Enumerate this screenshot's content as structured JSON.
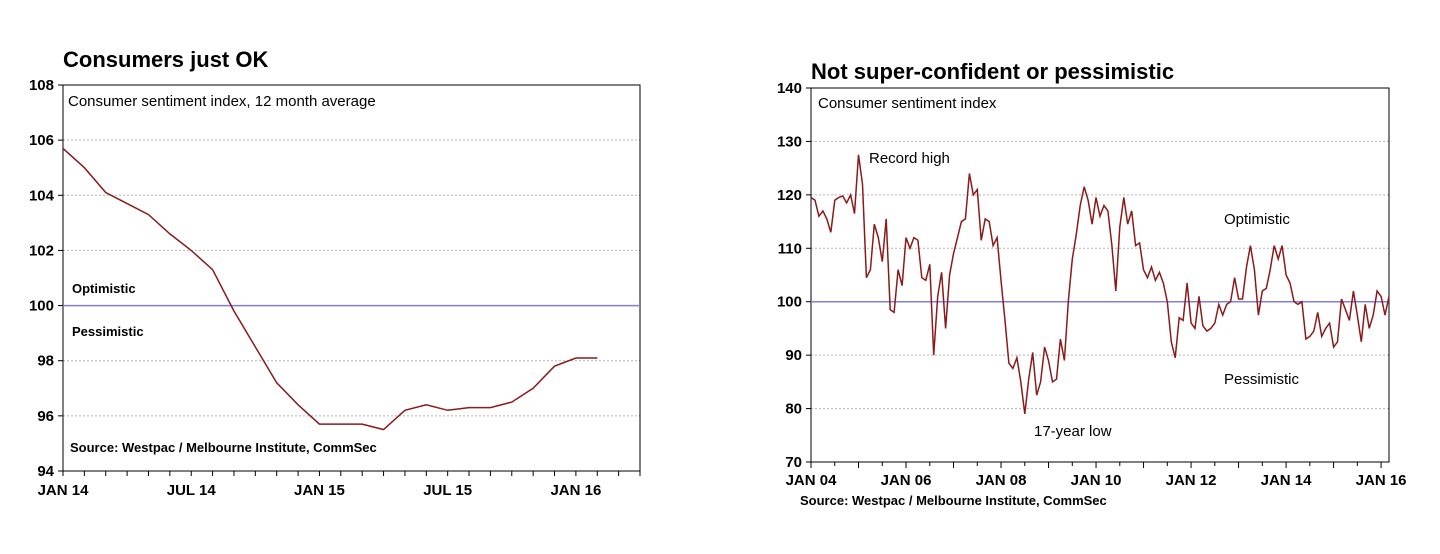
{
  "colors": {
    "series": "#8b1a1a",
    "threshold": "#7f7fe0",
    "grid": "#b4b4b4"
  },
  "chart_data": [
    {
      "type": "line",
      "title": "Consumers just OK",
      "subtitle": "Consumer sentiment index, 12 month average",
      "source": "Source: Westpac / Melbourne Institute, CommSec",
      "threshold": {
        "value": 100,
        "above_label": "Optimistic",
        "below_label": "Pessimistic"
      },
      "ylim": [
        94,
        108
      ],
      "yticks": [
        94,
        96,
        98,
        100,
        102,
        104,
        106,
        108
      ],
      "xlim": [
        0,
        27
      ],
      "xticks": [
        {
          "x": 0,
          "label": "JAN 14"
        },
        {
          "x": 6,
          "label": "JUL 14"
        },
        {
          "x": 12,
          "label": "JAN 15"
        },
        {
          "x": 18,
          "label": "JUL 15"
        },
        {
          "x": 24,
          "label": "JAN 16"
        }
      ],
      "x": [
        "Jan 14",
        "Feb 14",
        "Mar 14",
        "Apr 14",
        "May 14",
        "Jun 14",
        "Jul 14",
        "Aug 14",
        "Sep 14",
        "Oct 14",
        "Nov 14",
        "Dec 14",
        "Jan 15",
        "Feb 15",
        "Mar 15",
        "Apr 15",
        "May 15",
        "Jun 15",
        "Jul 15",
        "Aug 15",
        "Sep 15",
        "Oct 15",
        "Nov 15",
        "Dec 15",
        "Jan 16",
        "Feb 16"
      ],
      "series": [
        {
          "values": [
            105.7,
            105.0,
            104.1,
            103.7,
            103.3,
            102.6,
            102.0,
            101.3,
            99.8,
            98.5,
            97.2,
            96.4,
            95.7,
            95.7,
            95.7,
            95.5,
            96.2,
            96.4,
            96.2,
            96.3,
            96.3,
            96.5,
            97.0,
            97.8,
            98.1,
            98.1
          ]
        }
      ]
    },
    {
      "type": "line",
      "title": "Not super-confident or pessimistic",
      "subtitle": "Consumer sentiment index",
      "source": "Source: Westpac / Melbourne Institute, CommSec",
      "threshold": {
        "value": 100
      },
      "labels": {
        "high": "Record high",
        "low": "17-year low",
        "optimistic": "Optimistic",
        "pessimistic": "Pessimistic"
      },
      "ylim": [
        70,
        140
      ],
      "yticks": [
        70,
        80,
        90,
        100,
        110,
        120,
        130,
        140
      ],
      "xlim": [
        "Jan 04",
        "Mar 16"
      ],
      "xticks": [
        "JAN 04",
        "JAN 06",
        "JAN 08",
        "JAN 10",
        "JAN 12",
        "JAN 14",
        "JAN 16"
      ],
      "start": "Jan 04",
      "frequency": "monthly",
      "series": [
        {
          "values": [
            119.5,
            119.0,
            116.0,
            117.0,
            115.5,
            113.0,
            119.0,
            119.5,
            119.8,
            118.5,
            120.0,
            116.5,
            127.5,
            122.0,
            104.5,
            106.0,
            114.5,
            112.0,
            107.5,
            115.5,
            98.5,
            98.0,
            106.0,
            103.0,
            112.0,
            110.0,
            112.0,
            111.5,
            104.5,
            104.0,
            107.0,
            90.0,
            101.0,
            105.5,
            95.0,
            105.0,
            109.0,
            112.0,
            115.0,
            115.5,
            124.0,
            120.0,
            121.0,
            111.5,
            115.5,
            115.0,
            110.5,
            112.0,
            104.0,
            96.5,
            88.5,
            87.5,
            89.5,
            85.0,
            79.0,
            85.5,
            90.5,
            82.5,
            85.0,
            91.5,
            89.0,
            85.0,
            85.5,
            93.0,
            89.0,
            100.0,
            108.0,
            112.5,
            118.0,
            121.5,
            119.0,
            114.5,
            119.5,
            116.0,
            118.0,
            117.0,
            110.5,
            102.0,
            114.0,
            119.5,
            114.5,
            117.0,
            110.5,
            111.0,
            106.0,
            104.5,
            106.5,
            104.0,
            105.5,
            103.5,
            100.0,
            92.5,
            89.5,
            97.0,
            96.5,
            103.5,
            96.0,
            95.0,
            101.0,
            95.5,
            94.5,
            95.0,
            96.0,
            99.5,
            97.5,
            99.5,
            100.0,
            104.5,
            100.5,
            100.5,
            106.5,
            110.5,
            106.0,
            97.5,
            102.0,
            102.5,
            106.0,
            110.5,
            108.0,
            110.5,
            105.0,
            103.5,
            100.0,
            99.5,
            100.0,
            93.0,
            93.5,
            94.5,
            98.0,
            93.5,
            95.0,
            96.0,
            91.5,
            92.5,
            100.5,
            98.5,
            96.5,
            102.0,
            97.5,
            92.5,
            99.5,
            95.0,
            97.5,
            102.0,
            101.0,
            97.5,
            101.0
          ]
        }
      ]
    }
  ]
}
